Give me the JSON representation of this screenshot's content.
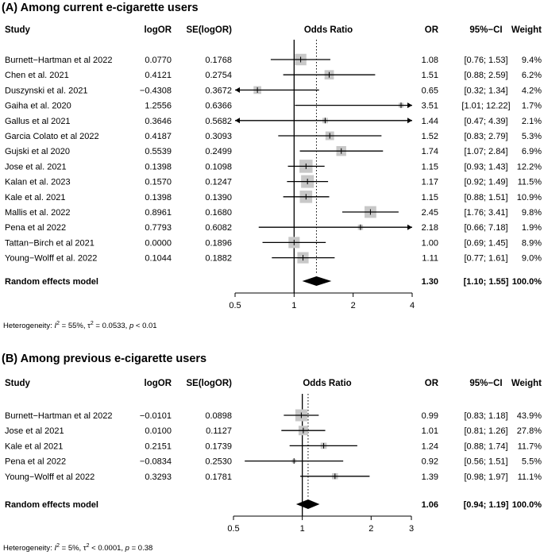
{
  "chart_data": [
    {
      "type": "forest",
      "title": "(A) Among current e-cigarette users",
      "headers": {
        "study": "Study",
        "logor": "logOR",
        "se": "SE(logOR)",
        "plot": "Odds Ratio",
        "or": "OR",
        "ci": "95%−CI",
        "weight": "Weight"
      },
      "studies": [
        {
          "study": "Burnett−Hartman et al 2022",
          "logor": "0.0770",
          "se": "0.1768",
          "or": "1.08",
          "ci": "[0.76;  1.53]",
          "weight": "9.4%",
          "or_value": 1.08,
          "lo": 0.76,
          "hi": 1.53,
          "w": 9.4
        },
        {
          "study": "Chen et al. 2021",
          "logor": "0.4121",
          "se": "0.2754",
          "or": "1.51",
          "ci": "[0.88;  2.59]",
          "weight": "6.2%",
          "or_value": 1.51,
          "lo": 0.88,
          "hi": 2.59,
          "w": 6.2
        },
        {
          "study": "Duszynski et al. 2021",
          "logor": "−0.4308",
          "se": "0.3672",
          "or": "0.65",
          "ci": "[0.32;  1.34]",
          "weight": "4.2%",
          "or_value": 0.65,
          "lo": 0.32,
          "hi": 1.34,
          "w": 4.2
        },
        {
          "study": "Gaiha et al.  2020",
          "logor": "1.2556",
          "se": "0.6366",
          "or": "3.51",
          "ci": "[1.01; 12.22]",
          "weight": "1.7%",
          "or_value": 3.51,
          "lo": 1.01,
          "hi": 12.22,
          "w": 1.7
        },
        {
          "study": "Gallus et al  2021",
          "logor": "0.3646",
          "se": "0.5682",
          "or": "1.44",
          "ci": "[0.47;  4.39]",
          "weight": "2.1%",
          "or_value": 1.44,
          "lo": 0.47,
          "hi": 4.39,
          "w": 2.1
        },
        {
          "study": "Garcia Colato et al  2022",
          "logor": "0.4187",
          "se": "0.3093",
          "or": "1.52",
          "ci": "[0.83;  2.79]",
          "weight": "5.3%",
          "or_value": 1.52,
          "lo": 0.83,
          "hi": 2.79,
          "w": 5.3
        },
        {
          "study": "Gujski et al  2020",
          "logor": "0.5539",
          "se": "0.2499",
          "or": "1.74",
          "ci": "[1.07;  2.84]",
          "weight": "6.9%",
          "or_value": 1.74,
          "lo": 1.07,
          "hi": 2.84,
          "w": 6.9
        },
        {
          "study": "Jose et al. 2021",
          "logor": "0.1398",
          "se": "0.1098",
          "or": "1.15",
          "ci": "[0.93;  1.43]",
          "weight": "12.2%",
          "or_value": 1.15,
          "lo": 0.93,
          "hi": 1.43,
          "w": 12.2
        },
        {
          "study": "Kalan et al. 2023",
          "logor": "0.1570",
          "se": "0.1247",
          "or": "1.17",
          "ci": "[0.92;  1.49]",
          "weight": "11.5%",
          "or_value": 1.17,
          "lo": 0.92,
          "hi": 1.49,
          "w": 11.5
        },
        {
          "study": "Kale et al. 2021",
          "logor": "0.1398",
          "se": "0.1390",
          "or": "1.15",
          "ci": "[0.88;  1.51]",
          "weight": "10.9%",
          "or_value": 1.15,
          "lo": 0.88,
          "hi": 1.51,
          "w": 10.9
        },
        {
          "study": "Mallis et al. 2022",
          "logor": "0.8961",
          "se": "0.1680",
          "or": "2.45",
          "ci": "[1.76;  3.41]",
          "weight": "9.8%",
          "or_value": 2.45,
          "lo": 1.76,
          "hi": 3.41,
          "w": 9.8
        },
        {
          "study": "Pena et al 2022",
          "logor": "0.7793",
          "se": "0.6082",
          "or": "2.18",
          "ci": "[0.66;  7.18]",
          "weight": "1.9%",
          "or_value": 2.18,
          "lo": 0.66,
          "hi": 7.18,
          "w": 1.9
        },
        {
          "study": "Tattan−Birch et al  2021",
          "logor": "0.0000",
          "se": "0.1896",
          "or": "1.00",
          "ci": "[0.69;  1.45]",
          "weight": "8.9%",
          "or_value": 1.0,
          "lo": 0.69,
          "hi": 1.45,
          "w": 8.9
        },
        {
          "study": "Young−Wolff et al. 2022",
          "logor": "0.1044",
          "se": "0.1882",
          "or": "1.11",
          "ci": "[0.77;  1.61]",
          "weight": "9.0%",
          "or_value": 1.11,
          "lo": 0.77,
          "hi": 1.61,
          "w": 9.0
        }
      ],
      "summary": {
        "label": "Random effects model",
        "or": "1.30",
        "ci": "[1.10;  1.55]",
        "weight": "100.0%",
        "or_value": 1.3,
        "lo": 1.1,
        "hi": 1.55
      },
      "xlim": [
        0.5,
        4
      ],
      "ticks": [
        {
          "value": 0.5,
          "label": "0.5"
        },
        {
          "value": 1,
          "label": "1"
        },
        {
          "value": 2,
          "label": "2"
        },
        {
          "value": 4,
          "label": "4"
        }
      ],
      "x_scale": "log",
      "heterogeneity": {
        "i2": "55%",
        "tau2": "0.0533",
        "p": "< 0.01"
      }
    },
    {
      "type": "forest",
      "title": "(B) Among previous e-cigarette users",
      "headers": {
        "study": "Study",
        "logor": "logOR",
        "se": "SE(logOR)",
        "plot": "Odds Ratio",
        "or": "OR",
        "ci": "95%−CI",
        "weight": "Weight"
      },
      "studies": [
        {
          "study": "Burnett−Hartman et al 2022",
          "logor": "−0.0101",
          "se": "0.0898",
          "or": "0.99",
          "ci": "[0.83; 1.18]",
          "weight": "43.9%",
          "or_value": 0.99,
          "lo": 0.83,
          "hi": 1.18,
          "w": 43.9
        },
        {
          "study": "Jose et al 2021",
          "logor": "0.0100",
          "se": "0.1127",
          "or": "1.01",
          "ci": "[0.81; 1.26]",
          "weight": "27.8%",
          "or_value": 1.01,
          "lo": 0.81,
          "hi": 1.26,
          "w": 27.8
        },
        {
          "study": "Kale et al 2021",
          "logor": "0.2151",
          "se": "0.1739",
          "or": "1.24",
          "ci": "[0.88; 1.74]",
          "weight": "11.7%",
          "or_value": 1.24,
          "lo": 0.88,
          "hi": 1.74,
          "w": 11.7
        },
        {
          "study": "Pena et al 2022",
          "logor": "−0.0834",
          "se": "0.2530",
          "or": "0.92",
          "ci": "[0.56; 1.51]",
          "weight": "5.5%",
          "or_value": 0.92,
          "lo": 0.56,
          "hi": 1.51,
          "w": 5.5
        },
        {
          "study": "Young−Wolff et al 2022",
          "logor": "0.3293",
          "se": "0.1781",
          "or": "1.39",
          "ci": "[0.98; 1.97]",
          "weight": "11.1%",
          "or_value": 1.39,
          "lo": 0.98,
          "hi": 1.97,
          "w": 11.1
        }
      ],
      "summary": {
        "label": "Random effects model",
        "or": "1.06",
        "ci": "[0.94; 1.19]",
        "weight": "100.0%",
        "or_value": 1.06,
        "lo": 0.94,
        "hi": 1.19
      },
      "xlim": [
        0.5,
        3
      ],
      "ticks": [
        {
          "value": 0.5,
          "label": "0.5"
        },
        {
          "value": 1,
          "label": "1"
        },
        {
          "value": 2,
          "label": "2"
        },
        {
          "value": 3,
          "label": "3"
        }
      ],
      "x_scale": "log",
      "heterogeneity": {
        "i2": "5%",
        "tau2": "< 0.0001",
        "p": "0.38"
      }
    }
  ],
  "colors": {
    "text": "#000000",
    "box": "#c8c8c8",
    "line": "#000000"
  }
}
